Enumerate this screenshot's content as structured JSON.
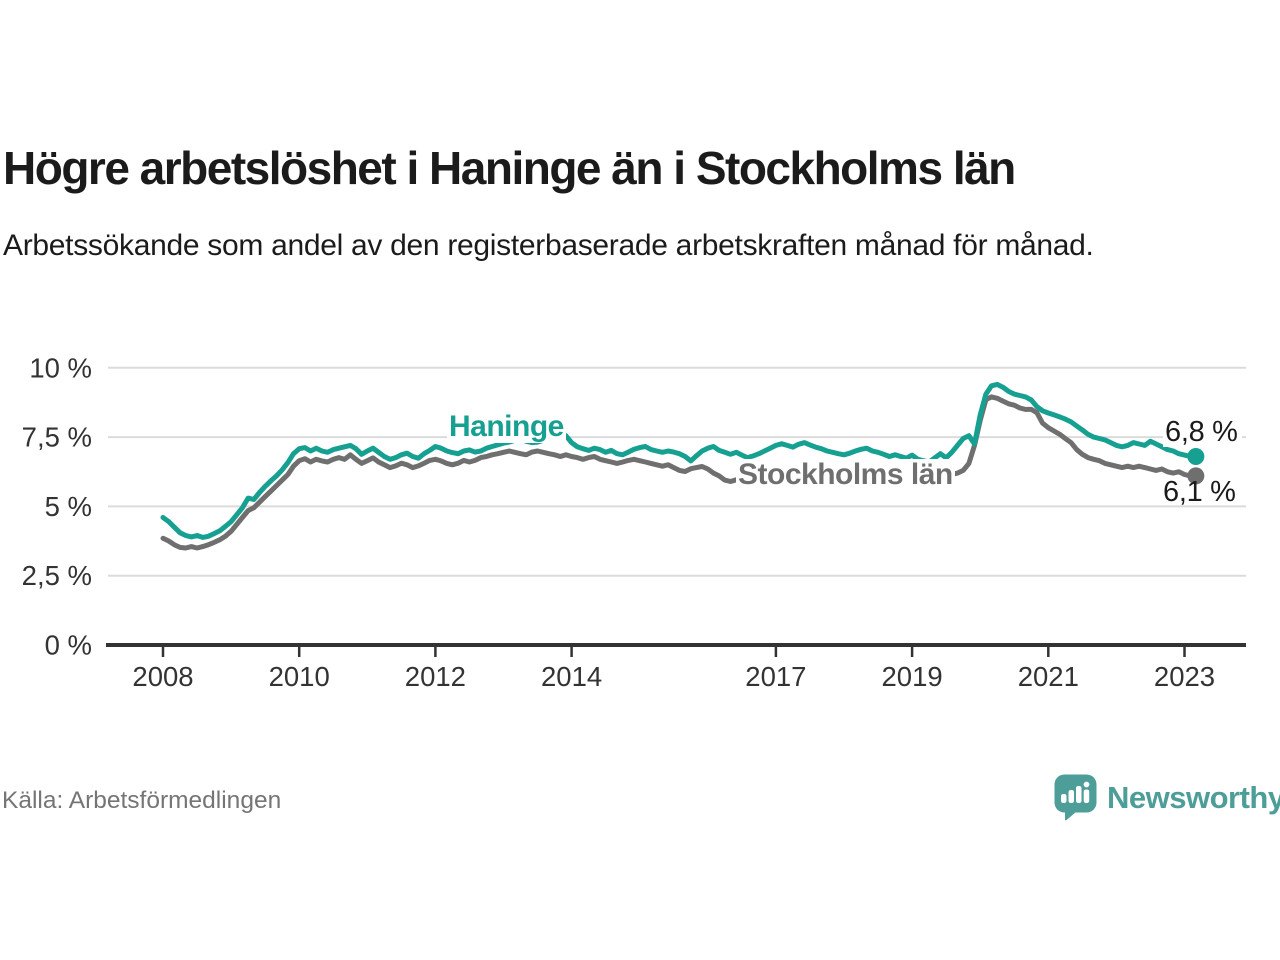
{
  "header": {
    "title": "Högre arbetslöshet i Haninge än i Stockholms län",
    "subtitle": "Arbetssökande som andel av den registerbaserade arbetskraften månad för månad."
  },
  "chart": {
    "series_labels": {
      "haninge": "Haninge",
      "stockholm": "Stockholms län"
    },
    "end_labels": {
      "haninge": "6,8 %",
      "stockholm": "6,1 %"
    }
  },
  "chart_data": {
    "type": "line",
    "title": "Högre arbetslöshet i Haninge än i Stockholms län",
    "subtitle": "Arbetssökande som andel av den registerbaserade arbetskraften månad för månad.",
    "unit": "%",
    "x_start_year": 2008,
    "points_per_year": 12,
    "grid": true,
    "ylim": [
      0,
      10
    ],
    "y_ticks": {
      "values": [
        0,
        2.5,
        5,
        7.5,
        10
      ],
      "labels": [
        "0 %",
        "2,5 %",
        "5 %",
        "7,5 %",
        "10 %"
      ]
    },
    "x_ticks": {
      "values": [
        2008,
        2010,
        2012,
        2014,
        2017,
        2019,
        2021,
        2023
      ],
      "labels": [
        "2008",
        "2010",
        "2012",
        "2014",
        "2017",
        "2019",
        "2021",
        "2023"
      ]
    },
    "series": [
      {
        "name": "Stockholms län",
        "color": "#6F6F6F",
        "final_value": 6.1,
        "final_label": "6,1 %",
        "values": [
          3.85,
          3.75,
          3.62,
          3.52,
          3.5,
          3.55,
          3.5,
          3.55,
          3.62,
          3.7,
          3.8,
          3.92,
          4.1,
          4.35,
          4.6,
          4.85,
          4.95,
          5.15,
          5.35,
          5.55,
          5.75,
          5.95,
          6.15,
          6.45,
          6.65,
          6.72,
          6.6,
          6.7,
          6.64,
          6.6,
          6.7,
          6.76,
          6.7,
          6.86,
          6.7,
          6.55,
          6.65,
          6.75,
          6.6,
          6.5,
          6.4,
          6.46,
          6.56,
          6.5,
          6.4,
          6.46,
          6.56,
          6.66,
          6.7,
          6.64,
          6.55,
          6.5,
          6.56,
          6.66,
          6.6,
          6.66,
          6.76,
          6.8,
          6.86,
          6.9,
          6.95,
          7.0,
          6.95,
          6.9,
          6.86,
          6.96,
          7.0,
          6.95,
          6.9,
          6.86,
          6.8,
          6.86,
          6.8,
          6.76,
          6.7,
          6.76,
          6.8,
          6.7,
          6.65,
          6.6,
          6.55,
          6.6,
          6.66,
          6.7,
          6.65,
          6.6,
          6.55,
          6.5,
          6.45,
          6.5,
          6.4,
          6.3,
          6.26,
          6.36,
          6.4,
          6.44,
          6.35,
          6.2,
          6.1,
          5.95,
          5.9,
          5.96,
          6.0,
          6.05,
          6.0,
          6.05,
          6.1,
          6.15,
          6.2,
          6.25,
          6.2,
          6.15,
          6.1,
          6.16,
          6.2,
          6.15,
          6.1,
          6.05,
          6.0,
          6.05,
          6.0,
          5.95,
          6.0,
          6.05,
          6.0,
          5.95,
          6.0,
          5.95,
          5.9,
          5.95,
          5.9,
          5.95,
          5.9,
          5.95,
          6.0,
          6.05,
          6.0,
          6.05,
          6.1,
          6.15,
          6.2,
          6.3,
          6.55,
          7.2,
          8.1,
          8.85,
          8.95,
          8.9,
          8.8,
          8.7,
          8.65,
          8.55,
          8.5,
          8.5,
          8.38,
          8.0,
          7.84,
          7.72,
          7.6,
          7.45,
          7.3,
          7.05,
          6.88,
          6.76,
          6.7,
          6.65,
          6.55,
          6.5,
          6.45,
          6.4,
          6.45,
          6.4,
          6.45,
          6.4,
          6.35,
          6.3,
          6.35,
          6.25,
          6.2,
          6.25,
          6.15,
          6.1,
          6.1
        ]
      },
      {
        "name": "Haninge",
        "color": "#16A091",
        "final_value": 6.8,
        "final_label": "6,8 %",
        "values": [
          4.6,
          4.45,
          4.25,
          4.05,
          3.95,
          3.9,
          3.95,
          3.88,
          3.92,
          4.02,
          4.12,
          4.28,
          4.45,
          4.7,
          4.95,
          5.3,
          5.25,
          5.5,
          5.72,
          5.92,
          6.1,
          6.32,
          6.58,
          6.9,
          7.08,
          7.12,
          7.0,
          7.1,
          7.0,
          6.95,
          7.05,
          7.1,
          7.15,
          7.2,
          7.08,
          6.88,
          7.0,
          7.1,
          6.95,
          6.8,
          6.7,
          6.76,
          6.86,
          6.92,
          6.8,
          6.74,
          6.9,
          7.02,
          7.16,
          7.1,
          7.0,
          6.94,
          6.9,
          7.0,
          7.04,
          6.96,
          7.0,
          7.1,
          7.16,
          7.22,
          7.28,
          7.32,
          7.38,
          7.42,
          7.35,
          7.3,
          7.32,
          7.38,
          7.42,
          7.38,
          7.42,
          7.55,
          7.3,
          7.15,
          7.08,
          7.02,
          7.1,
          7.05,
          6.95,
          7.02,
          6.9,
          6.86,
          6.96,
          7.06,
          7.12,
          7.16,
          7.05,
          7.0,
          6.95,
          7.0,
          6.96,
          6.9,
          6.8,
          6.64,
          6.82,
          7.0,
          7.1,
          7.16,
          7.02,
          6.95,
          6.88,
          6.95,
          6.85,
          6.76,
          6.82,
          6.9,
          7.0,
          7.1,
          7.2,
          7.26,
          7.2,
          7.14,
          7.24,
          7.3,
          7.22,
          7.14,
          7.08,
          7.0,
          6.95,
          6.9,
          6.86,
          6.92,
          7.0,
          7.06,
          7.1,
          7.0,
          6.95,
          6.88,
          6.8,
          6.86,
          6.8,
          6.74,
          6.85,
          6.7,
          6.65,
          6.6,
          6.75,
          6.9,
          6.75,
          6.95,
          7.2,
          7.45,
          7.55,
          7.25,
          8.3,
          9.05,
          9.35,
          9.4,
          9.3,
          9.15,
          9.05,
          9.0,
          8.95,
          8.84,
          8.6,
          8.45,
          8.37,
          8.3,
          8.23,
          8.15,
          8.05,
          7.9,
          7.76,
          7.6,
          7.5,
          7.45,
          7.4,
          7.3,
          7.2,
          7.15,
          7.2,
          7.3,
          7.25,
          7.2,
          7.35,
          7.25,
          7.15,
          7.05,
          7.0,
          6.9,
          6.85,
          6.8,
          6.8
        ]
      }
    ],
    "legend_position": "inline-labels"
  },
  "footer": {
    "source": "Källa: Arbetsförmedlingen",
    "brand": "Newsworthy"
  },
  "colors": {
    "haninge_line": "#16A091",
    "stockholm_line": "#6F6F6F",
    "axis_text": "#333333",
    "gridline": "#DBDBDB",
    "title_text": "#1b1b1b",
    "source_text": "#757575",
    "brand_teal": "#4D9D99"
  }
}
